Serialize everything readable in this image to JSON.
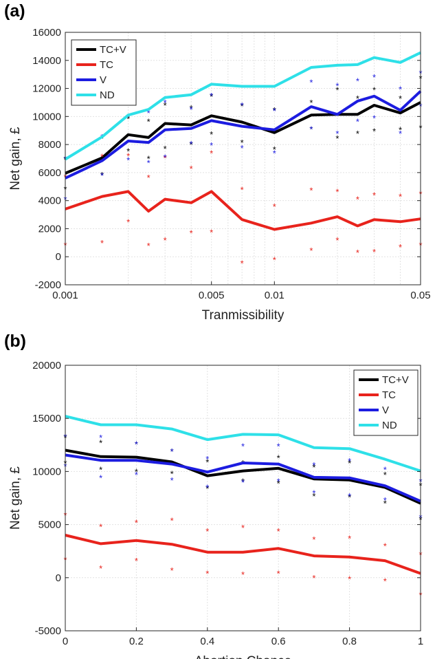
{
  "panels": [
    {
      "label": "(a)"
    },
    {
      "label": "(b)"
    }
  ],
  "chart_data": [
    {
      "type": "line",
      "title": "",
      "xlabel": "Tranmissibility",
      "ylabel": "Net gain, £",
      "xscale": "log",
      "xlim": [
        0.001,
        0.05
      ],
      "ylim": [
        -2000,
        16000
      ],
      "x_ticks": [
        0.001,
        0.005,
        0.01,
        0.05
      ],
      "x_tick_labels": [
        "0.001",
        "0.005",
        "0.01",
        "0.05"
      ],
      "y_ticks": [
        -2000,
        0,
        2000,
        4000,
        6000,
        8000,
        10000,
        12000,
        14000,
        16000
      ],
      "y_tick_labels": [
        "-2000",
        "0",
        "2000",
        "4000",
        "6000",
        "8000",
        "10000",
        "12000",
        "14000",
        "16000"
      ],
      "grid": true,
      "legend_position": "top-left",
      "x": [
        0.001,
        0.0015,
        0.002,
        0.0025,
        0.003,
        0.004,
        0.005,
        0.007,
        0.01,
        0.015,
        0.02,
        0.025,
        0.03,
        0.04,
        0.05
      ],
      "series": [
        {
          "name": "TC+V",
          "color": "#000000",
          "values": [
            5950,
            7050,
            8700,
            8500,
            9500,
            9400,
            10050,
            9600,
            8850,
            10100,
            10150,
            10150,
            10800,
            10250,
            11000
          ],
          "upper": [
            6950,
            8450,
            9850,
            9650,
            10800,
            10600,
            11450,
            10750,
            10450,
            11000,
            11900,
            11300,
            11900,
            11300,
            12750
          ],
          "lower": [
            4850,
            5850,
            7550,
            7000,
            7700,
            8000,
            8750,
            8150,
            7650,
            9100,
            8450,
            8800,
            8950,
            9050,
            9200
          ]
        },
        {
          "name": "TC",
          "color": "#e8231c",
          "values": [
            3400,
            4300,
            4650,
            3250,
            4100,
            3850,
            4650,
            2650,
            1950,
            2400,
            2850,
            2200,
            2650,
            2500,
            2700
          ],
          "upper": [
            5700,
            7150,
            7200,
            5650,
            7050,
            6300,
            7400,
            4800,
            3600,
            4750,
            4650,
            4100,
            4400,
            4300,
            4500
          ],
          "lower": [
            850,
            1000,
            2500,
            800,
            1200,
            1700,
            1750,
            -450,
            -200,
            450,
            1200,
            300,
            350,
            700,
            850
          ]
        },
        {
          "name": "V",
          "color": "#1c1ce0",
          "values": [
            5600,
            6850,
            8250,
            8150,
            9050,
            9150,
            9700,
            9300,
            9050,
            10700,
            10150,
            11100,
            11450,
            10450,
            11800
          ],
          "upper": [
            7000,
            8550,
            10000,
            10250,
            11000,
            10500,
            11500,
            10800,
            10400,
            12450,
            12200,
            12550,
            12800,
            11950,
            13100
          ],
          "lower": [
            4100,
            5800,
            6900,
            6700,
            7100,
            8050,
            7950,
            7750,
            7400,
            9100,
            8800,
            9650,
            9900,
            8800,
            10750
          ]
        },
        {
          "name": "ND",
          "color": "#2ee0e8",
          "values": [
            6950,
            8550,
            10100,
            10500,
            11350,
            11550,
            12300,
            12150,
            12150,
            13500,
            13650,
            13700,
            14200,
            13850,
            14550
          ],
          "upper": [],
          "lower": []
        }
      ]
    },
    {
      "type": "line",
      "title": "",
      "xlabel": "Abortion Chance",
      "ylabel": "Net gain, £",
      "xscale": "linear",
      "xlim": [
        0,
        1
      ],
      "ylim": [
        -5000,
        20000
      ],
      "x_ticks": [
        0,
        0.2,
        0.4,
        0.6,
        0.8,
        1
      ],
      "x_tick_labels": [
        "0",
        "0.2",
        "0.4",
        "0.6",
        "0.8",
        "1"
      ],
      "y_ticks": [
        -5000,
        0,
        5000,
        10000,
        15000,
        20000
      ],
      "y_tick_labels": [
        "-5000",
        "0",
        "5000",
        "10000",
        "15000",
        "20000"
      ],
      "grid": true,
      "legend_position": "top-right",
      "x": [
        0,
        0.1,
        0.2,
        0.3,
        0.4,
        0.5,
        0.6,
        0.7,
        0.8,
        0.9,
        1.0
      ],
      "series": [
        {
          "name": "TC+V",
          "color": "#000000",
          "values": [
            12000,
            11400,
            11350,
            10900,
            9600,
            10050,
            10300,
            9300,
            9200,
            8500,
            7000
          ],
          "upper": [
            13200,
            12700,
            12600,
            11900,
            10900,
            10800,
            11300,
            10400,
            10800,
            9700,
            8700
          ],
          "lower": [
            10800,
            10200,
            10000,
            9800,
            8400,
            9100,
            8900,
            7700,
            7600,
            7000,
            5500
          ]
        },
        {
          "name": "TC",
          "color": "#e8231c",
          "values": [
            4000,
            3200,
            3500,
            3150,
            2400,
            2400,
            2750,
            2050,
            1950,
            1600,
            400
          ],
          "upper": [
            5900,
            4800,
            5200,
            5400,
            4400,
            4700,
            4400,
            3600,
            3700,
            3000,
            2200
          ],
          "lower": [
            1700,
            900,
            1600,
            700,
            400,
            300,
            400,
            0,
            -100,
            -300,
            -1600
          ]
        },
        {
          "name": "V",
          "color": "#1c1ce0",
          "values": [
            11550,
            11050,
            11050,
            10700,
            9950,
            10800,
            10700,
            9450,
            9400,
            8650,
            7200
          ],
          "upper": [
            13300,
            13200,
            12600,
            11900,
            11200,
            12400,
            12400,
            10600,
            11000,
            10200,
            9100
          ],
          "lower": [
            10500,
            9400,
            9700,
            9200,
            8500,
            9000,
            9100,
            8000,
            7700,
            7300,
            5700
          ]
        },
        {
          "name": "ND",
          "color": "#2ee0e8",
          "values": [
            15200,
            14400,
            14400,
            14000,
            13000,
            13500,
            13450,
            12250,
            12150,
            11150,
            10050
          ],
          "upper": [],
          "lower": []
        }
      ]
    }
  ]
}
